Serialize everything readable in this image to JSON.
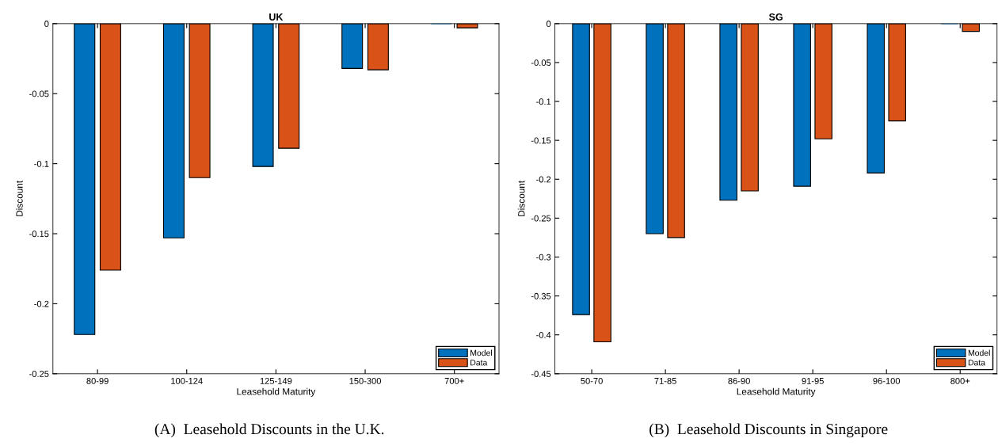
{
  "chart_data": [
    {
      "type": "bar",
      "title": "UK",
      "xlabel": "Leasehold Maturity",
      "ylabel": "Discount",
      "categories": [
        "80-99",
        "100-124",
        "125-149",
        "150-300",
        "700+"
      ],
      "series": [
        {
          "name": "Model",
          "color": "#0072bd",
          "values": [
            -0.222,
            -0.153,
            -0.102,
            -0.032,
            0
          ]
        },
        {
          "name": "Data",
          "color": "#d95319",
          "values": [
            -0.176,
            -0.11,
            -0.089,
            -0.033,
            -0.003
          ]
        }
      ],
      "ylim": [
        -0.25,
        0
      ],
      "yticks": [
        -0.25,
        -0.2,
        -0.15,
        -0.1,
        -0.05,
        0
      ],
      "legend": "bottom right",
      "grid": false,
      "annotations": [
        "(A)  Leasehold Discounts in the U.K."
      ]
    },
    {
      "type": "bar",
      "title": "SG",
      "xlabel": "Leasehold Maturity",
      "ylabel": "Discount",
      "categories": [
        "50-70",
        "71-85",
        "86-90",
        "91-95",
        "96-100",
        "800+"
      ],
      "series": [
        {
          "name": "Model",
          "color": "#0072bd",
          "values": [
            -0.374,
            -0.27,
            -0.227,
            -0.209,
            -0.192,
            0
          ]
        },
        {
          "name": "Data",
          "color": "#d95319",
          "values": [
            -0.409,
            -0.275,
            -0.215,
            -0.148,
            -0.125,
            -0.01
          ]
        }
      ],
      "ylim": [
        -0.45,
        0
      ],
      "yticks": [
        -0.45,
        -0.4,
        -0.35,
        -0.3,
        -0.25,
        -0.2,
        -0.15,
        -0.1,
        -0.05,
        0
      ],
      "legend": "bottom right",
      "grid": false,
      "annotations": [
        "(B)  Leasehold Discounts in Singapore"
      ]
    }
  ]
}
